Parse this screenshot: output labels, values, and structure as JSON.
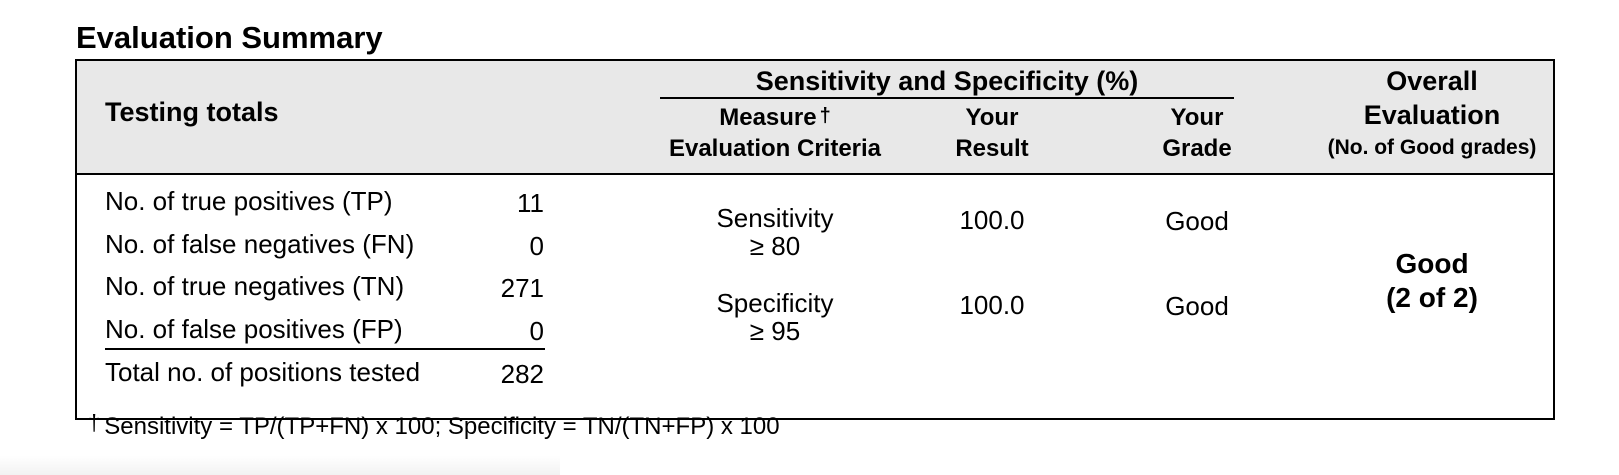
{
  "title": "Evaluation Summary",
  "header": {
    "testing_totals": "Testing totals",
    "group_title": "Sensitivity and Specificity (%)",
    "measure_line1": "Measure",
    "dagger": "†",
    "measure_line2": "Evaluation Criteria",
    "result_line1": "Your",
    "result_line2": "Result",
    "grade_line1": "Your",
    "grade_line2": "Grade",
    "overall_line1": "Overall",
    "overall_line2": "Evaluation",
    "overall_line3": "(No. of Good grades)"
  },
  "totals": [
    {
      "label": "No. of true positives (TP)",
      "value": "11"
    },
    {
      "label": "No. of false negatives (FN)",
      "value": "0"
    },
    {
      "label": "No. of true negatives (TN)",
      "value": "271"
    },
    {
      "label": "No. of false positives (FP)",
      "value": "0"
    },
    {
      "label": "Total no. of positions tested",
      "value": "282"
    }
  ],
  "measures": [
    {
      "name": "Sensitivity",
      "criteria": "≥ 80",
      "result": "100.0",
      "grade": "Good"
    },
    {
      "name": "Specificity",
      "criteria": "≥ 95",
      "result": "100.0",
      "grade": "Good"
    }
  ],
  "overall": {
    "grade": "Good",
    "count": "(2 of 2)"
  },
  "footnote": {
    "symbol": "†",
    "text": "Sensitivity = TP/(TP+FN) x 100; Specificity = TN/(TN+FP) x 100"
  }
}
